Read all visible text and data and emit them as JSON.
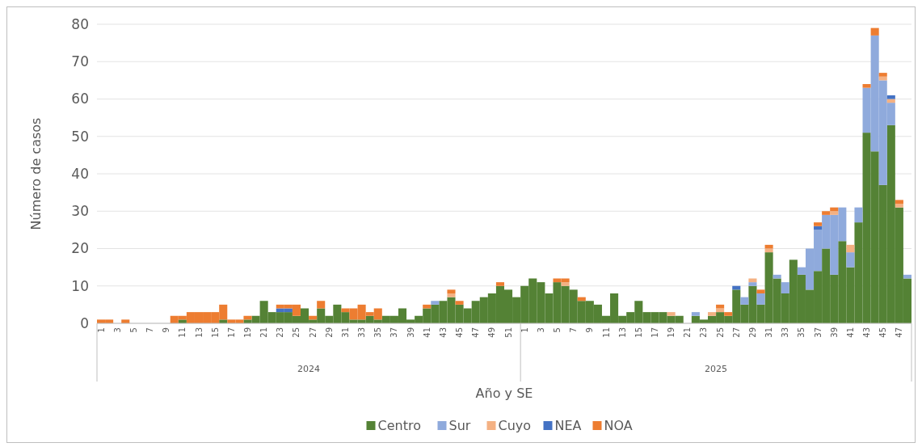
{
  "chart_data": {
    "type": "bar",
    "stacked": true,
    "xlabel": "Año y SE",
    "ylabel": "Número de casos",
    "ylim": [
      0,
      80
    ],
    "yticks": [
      0,
      10,
      20,
      30,
      40,
      50,
      60,
      70,
      80
    ],
    "grid": "y",
    "legend": "bottom",
    "annotations": [
      "2024",
      "2025"
    ],
    "categories": [
      "1",
      null,
      "3",
      null,
      "5",
      null,
      "7",
      null,
      "9",
      null,
      "11",
      null,
      "13",
      null,
      "15",
      null,
      "17",
      null,
      "19",
      null,
      "21",
      null,
      "23",
      null,
      "25",
      null,
      "27",
      null,
      "29",
      null,
      "31",
      null,
      "33",
      null,
      "35",
      null,
      "37",
      null,
      "39",
      null,
      "41",
      null,
      "43",
      null,
      "45",
      null,
      "47",
      null,
      "49",
      null,
      "51",
      null,
      "1",
      null,
      "3",
      null,
      "5",
      null,
      "7",
      null,
      "9",
      null,
      "11",
      null,
      "13",
      null,
      "15",
      null,
      "17",
      null,
      "19",
      null,
      "21",
      null,
      "23",
      null,
      "25",
      null,
      "27",
      null,
      "29",
      null,
      "31",
      null,
      "33",
      null,
      "35",
      null,
      "37",
      null,
      "39",
      null,
      "41",
      null,
      "43",
      null,
      "45",
      null,
      "47",
      null
    ],
    "series": [
      {
        "name": "Centro",
        "color": "#548235",
        "values": [
          0,
          0,
          0,
          0,
          0,
          0,
          0,
          0,
          0,
          0,
          1,
          0,
          0,
          0,
          0,
          1,
          0,
          0,
          1,
          2,
          6,
          3,
          3,
          3,
          2,
          4,
          1,
          4,
          2,
          5,
          3,
          1,
          1,
          2,
          1,
          2,
          2,
          4,
          1,
          2,
          4,
          5,
          6,
          7,
          5,
          4,
          6,
          7,
          8,
          10,
          9,
          7,
          10,
          12,
          11,
          8,
          11,
          10,
          9,
          6,
          6,
          5,
          2,
          8,
          2,
          3,
          6,
          3,
          3,
          3,
          2,
          2,
          0,
          2,
          1,
          2,
          3,
          2,
          9,
          5,
          10,
          5,
          19,
          12,
          8,
          17,
          13,
          9,
          14,
          20,
          13,
          22,
          15,
          27,
          51,
          46,
          37,
          53,
          31,
          12
        ]
      },
      {
        "name": "Sur",
        "color": "#8faadc",
        "values": [
          0,
          0,
          0,
          0,
          0,
          0,
          0,
          0,
          0,
          0,
          0,
          0,
          0,
          0,
          0,
          0,
          0,
          0,
          0,
          0,
          0,
          0,
          0,
          0,
          0,
          0,
          0,
          0,
          0,
          0,
          0,
          0,
          0,
          0,
          0,
          0,
          0,
          0,
          0,
          0,
          0,
          1,
          0,
          0,
          0,
          0,
          0,
          0,
          0,
          0,
          0,
          0,
          0,
          0,
          0,
          0,
          0,
          0,
          0,
          0,
          0,
          0,
          0,
          0,
          0,
          0,
          0,
          0,
          0,
          0,
          0,
          0,
          0,
          1,
          0,
          0,
          0,
          0,
          0,
          2,
          1,
          3,
          0,
          1,
          3,
          0,
          2,
          11,
          11,
          9,
          16,
          9,
          4,
          4,
          12,
          31,
          28,
          6,
          0,
          1
        ]
      },
      {
        "name": "Cuyo",
        "color": "#f4b183",
        "values": [
          0,
          0,
          0,
          0,
          0,
          0,
          0,
          0,
          0,
          0,
          0,
          0,
          0,
          0,
          0,
          0,
          0,
          0,
          0,
          0,
          0,
          0,
          0,
          0,
          0,
          0,
          0,
          0,
          0,
          0,
          0,
          0,
          0,
          0,
          0,
          0,
          0,
          0,
          0,
          0,
          0,
          0,
          0,
          1,
          0,
          0,
          0,
          0,
          0,
          0,
          0,
          0,
          0,
          0,
          0,
          0,
          0,
          1,
          0,
          0,
          0,
          0,
          0,
          0,
          0,
          0,
          0,
          0,
          0,
          0,
          1,
          0,
          0,
          0,
          0,
          1,
          1,
          0,
          0,
          0,
          1,
          0,
          1,
          0,
          0,
          0,
          0,
          0,
          0,
          0,
          1,
          0,
          2,
          0,
          0,
          0,
          1,
          1,
          1,
          0
        ]
      },
      {
        "name": "NEA",
        "color": "#4472c4",
        "values": [
          0,
          0,
          0,
          0,
          0,
          0,
          0,
          0,
          0,
          0,
          0,
          0,
          0,
          0,
          0,
          0,
          0,
          0,
          0,
          0,
          0,
          0,
          1,
          1,
          0,
          0,
          0,
          0,
          0,
          0,
          0,
          0,
          0,
          0,
          0,
          0,
          0,
          0,
          0,
          0,
          0,
          0,
          0,
          0,
          0,
          0,
          0,
          0,
          0,
          0,
          0,
          0,
          0,
          0,
          0,
          0,
          0,
          0,
          0,
          0,
          0,
          0,
          0,
          0,
          0,
          0,
          0,
          0,
          0,
          0,
          0,
          0,
          0,
          0,
          0,
          0,
          0,
          0,
          1,
          0,
          0,
          0,
          0,
          0,
          0,
          0,
          0,
          0,
          1,
          0,
          0,
          0,
          0,
          0,
          0,
          0,
          0,
          1,
          0,
          0
        ]
      },
      {
        "name": "NOA",
        "color": "#ed7d31",
        "values": [
          1,
          1,
          0,
          1,
          0,
          0,
          0,
          0,
          0,
          2,
          1,
          3,
          3,
          3,
          3,
          4,
          1,
          1,
          1,
          0,
          0,
          0,
          1,
          1,
          3,
          0,
          1,
          2,
          0,
          0,
          1,
          3,
          4,
          1,
          3,
          0,
          0,
          0,
          0,
          0,
          1,
          0,
          0,
          1,
          1,
          0,
          0,
          0,
          0,
          1,
          0,
          0,
          0,
          0,
          0,
          0,
          1,
          1,
          0,
          1,
          0,
          0,
          0,
          0,
          0,
          0,
          0,
          0,
          0,
          0,
          0,
          0,
          0,
          0,
          0,
          0,
          1,
          1,
          0,
          0,
          0,
          1,
          1,
          0,
          0,
          0,
          0,
          0,
          1,
          1,
          1,
          0,
          0,
          0,
          1,
          2,
          1,
          0,
          1,
          0
        ]
      }
    ]
  }
}
